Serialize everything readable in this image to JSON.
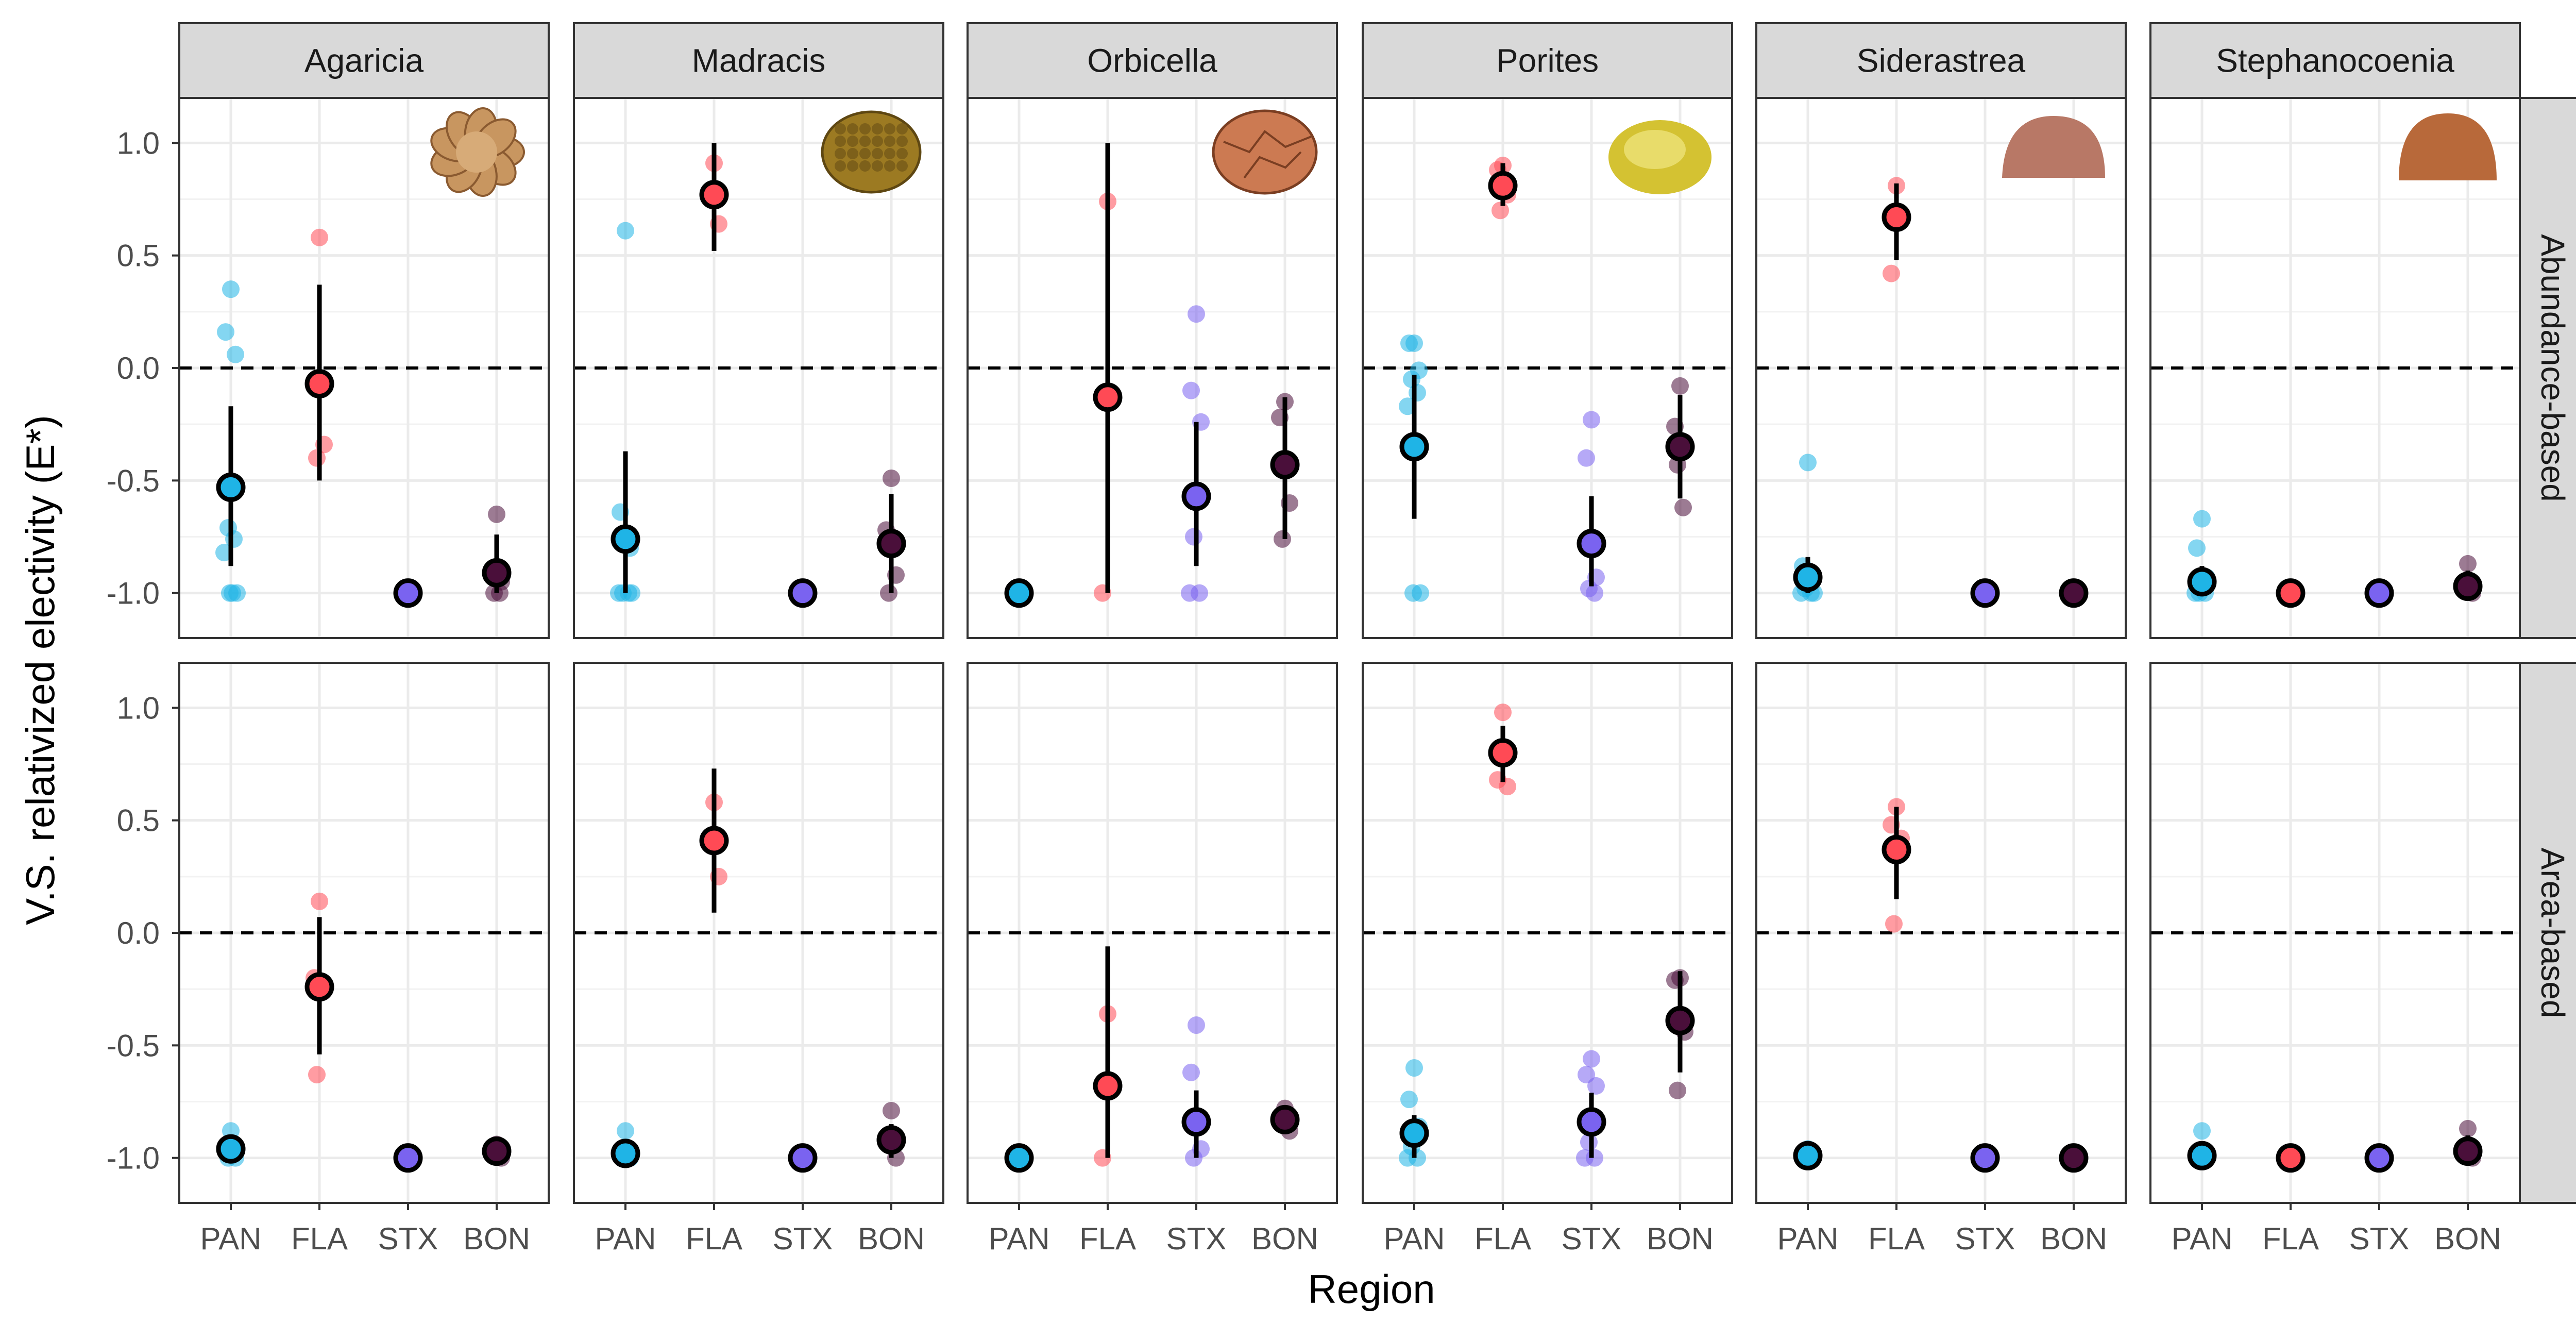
{
  "chart_data": {
    "type": "scatter",
    "xlabel": "Region",
    "ylabel": "V.S. relativized electivity (E*)",
    "ylim": [
      -1.2,
      1.2
    ],
    "yticks": [
      -1.0,
      -0.5,
      0.0,
      0.5,
      1.0
    ],
    "ytick_labels": [
      "-1.0",
      "-0.5",
      "0.0",
      "0.5",
      "1.0"
    ],
    "grid": true,
    "reference_line": {
      "y": 0,
      "style": "dashed"
    },
    "categories": [
      "PAN",
      "FLA",
      "STX",
      "BON"
    ],
    "category_colors": {
      "PAN": "#1fb4e6",
      "FLA": "#ff4a55",
      "STX": "#7a63f0",
      "BON": "#4a0f3a"
    },
    "genera": [
      "Agaricia",
      "Madracis",
      "Orbicella",
      "Porites",
      "Siderastrea",
      "Stephanocoenia"
    ],
    "rows": [
      "Abundance-based",
      "Area-based"
    ],
    "coral_icons": [
      {
        "genus": "Agaricia",
        "icon": "agaricia-coral-icon",
        "color": "#c89660"
      },
      {
        "genus": "Madracis",
        "icon": "madracis-coral-icon",
        "color": "#9c7a22"
      },
      {
        "genus": "Orbicella",
        "icon": "orbicella-coral-icon",
        "color": "#cc7a52"
      },
      {
        "genus": "Porites",
        "icon": "porites-coral-icon",
        "color": "#d4c232"
      },
      {
        "genus": "Siderastrea",
        "icon": "siderastrea-coral-icon",
        "color": "#b87866"
      },
      {
        "genus": "Stephanocoenia",
        "icon": "stephanocoenia-coral-icon",
        "color": "#b8693a"
      }
    ],
    "panels": [
      {
        "genus": "Agaricia",
        "row": "Abundance-based",
        "groups": [
          {
            "region": "PAN",
            "mean": -0.53,
            "lo": -0.88,
            "hi": -0.17,
            "points": [
              0.35,
              0.16,
              0.06,
              -0.71,
              -0.76,
              -0.82,
              -1.0,
              -1.0,
              -1.0
            ]
          },
          {
            "region": "FLA",
            "mean": -0.07,
            "lo": -0.5,
            "hi": 0.37,
            "points": [
              0.58,
              -0.07,
              -0.34,
              -0.4
            ]
          },
          {
            "region": "STX",
            "mean": -1.0,
            "lo": null,
            "hi": null,
            "points": [
              -1.0,
              -1.0,
              -1.0
            ]
          },
          {
            "region": "BON",
            "mean": -0.91,
            "lo": -1.0,
            "hi": -0.74,
            "points": [
              -0.65,
              -0.9,
              -0.95,
              -1.0,
              -1.0
            ]
          }
        ]
      },
      {
        "genus": "Madracis",
        "row": "Abundance-based",
        "groups": [
          {
            "region": "PAN",
            "mean": -0.76,
            "lo": -1.0,
            "hi": -0.37,
            "points": [
              0.61,
              -0.64,
              -0.8,
              -1.0,
              -1.0,
              -1.0,
              -1.0
            ]
          },
          {
            "region": "FLA",
            "mean": 0.77,
            "lo": 0.52,
            "hi": 1.0,
            "points": [
              0.91,
              0.78,
              0.64
            ]
          },
          {
            "region": "STX",
            "mean": -1.0,
            "lo": null,
            "hi": null,
            "points": [
              -1.0,
              -1.0
            ]
          },
          {
            "region": "BON",
            "mean": -0.78,
            "lo": -1.0,
            "hi": -0.56,
            "points": [
              -0.49,
              -0.72,
              -0.92,
              -1.0
            ]
          }
        ]
      },
      {
        "genus": "Orbicella",
        "row": "Abundance-based",
        "groups": [
          {
            "region": "PAN",
            "mean": -1.0,
            "lo": null,
            "hi": null,
            "points": [
              -1.0,
              -1.0,
              -1.0
            ]
          },
          {
            "region": "FLA",
            "mean": -0.13,
            "lo": -1.0,
            "hi": 1.0,
            "points": [
              0.74,
              -1.0
            ]
          },
          {
            "region": "STX",
            "mean": -0.57,
            "lo": -0.88,
            "hi": -0.24,
            "points": [
              0.24,
              -0.1,
              -0.24,
              -0.75,
              -1.0,
              -1.0
            ]
          },
          {
            "region": "BON",
            "mean": -0.43,
            "lo": -0.76,
            "hi": -0.13,
            "points": [
              -0.15,
              -0.22,
              -0.6,
              -0.76
            ]
          }
        ]
      },
      {
        "genus": "Porites",
        "row": "Abundance-based",
        "groups": [
          {
            "region": "PAN",
            "mean": -0.35,
            "lo": -0.67,
            "hi": -0.03,
            "points": [
              0.11,
              0.11,
              -0.01,
              -0.05,
              -0.11,
              -0.17,
              -1.0,
              -1.0
            ]
          },
          {
            "region": "FLA",
            "mean": 0.81,
            "lo": 0.72,
            "hi": 0.91,
            "points": [
              0.9,
              0.88,
              0.77,
              0.7
            ]
          },
          {
            "region": "STX",
            "mean": -0.78,
            "lo": -0.97,
            "hi": -0.57,
            "points": [
              -0.23,
              -0.4,
              -0.93,
              -0.98,
              -1.0
            ]
          },
          {
            "region": "BON",
            "mean": -0.35,
            "lo": -0.58,
            "hi": -0.12,
            "points": [
              -0.08,
              -0.26,
              -0.33,
              -0.43,
              -0.62
            ]
          }
        ]
      },
      {
        "genus": "Siderastrea",
        "row": "Abundance-based",
        "groups": [
          {
            "region": "PAN",
            "mean": -0.93,
            "lo": -1.0,
            "hi": -0.84,
            "points": [
              -0.42,
              -0.88,
              -0.94,
              -0.98,
              -1.0,
              -1.0,
              -1.0
            ]
          },
          {
            "region": "FLA",
            "mean": 0.67,
            "lo": 0.48,
            "hi": 0.82,
            "points": [
              0.81,
              0.42
            ]
          },
          {
            "region": "STX",
            "mean": -1.0,
            "lo": null,
            "hi": null,
            "points": [
              -1.0,
              -1.0
            ]
          },
          {
            "region": "BON",
            "mean": -1.0,
            "lo": null,
            "hi": null,
            "points": [
              -1.0,
              -1.0
            ]
          }
        ]
      },
      {
        "genus": "Stephanocoenia",
        "row": "Abundance-based",
        "groups": [
          {
            "region": "PAN",
            "mean": -0.95,
            "lo": -1.0,
            "hi": -0.88,
            "points": [
              -0.67,
              -0.8,
              -0.93,
              -1.0,
              -1.0,
              -1.0
            ]
          },
          {
            "region": "FLA",
            "mean": -1.0,
            "lo": null,
            "hi": null,
            "points": [
              -1.0,
              -1.0
            ]
          },
          {
            "region": "STX",
            "mean": -1.0,
            "lo": null,
            "hi": null,
            "points": [
              -1.0,
              -1.0
            ]
          },
          {
            "region": "BON",
            "mean": -0.97,
            "lo": -1.0,
            "hi": -0.9,
            "points": [
              -0.87,
              -0.96,
              -1.0
            ]
          }
        ]
      },
      {
        "genus": "Agaricia",
        "row": "Area-based",
        "groups": [
          {
            "region": "PAN",
            "mean": -0.96,
            "lo": -1.0,
            "hi": -0.91,
            "points": [
              -0.88,
              -0.95,
              -1.0,
              -1.0
            ]
          },
          {
            "region": "FLA",
            "mean": -0.24,
            "lo": -0.54,
            "hi": 0.07,
            "points": [
              0.14,
              -0.2,
              -0.25,
              -0.63
            ]
          },
          {
            "region": "STX",
            "mean": -1.0,
            "lo": null,
            "hi": null,
            "points": [
              -1.0,
              -1.0
            ]
          },
          {
            "region": "BON",
            "mean": -0.97,
            "lo": -1.0,
            "hi": -0.94,
            "points": [
              -0.94,
              -0.97,
              -1.0
            ]
          }
        ]
      },
      {
        "genus": "Madracis",
        "row": "Area-based",
        "groups": [
          {
            "region": "PAN",
            "mean": -0.98,
            "lo": -1.0,
            "hi": -0.94,
            "points": [
              -0.88,
              -0.98,
              -1.0
            ]
          },
          {
            "region": "FLA",
            "mean": 0.41,
            "lo": 0.09,
            "hi": 0.73,
            "points": [
              0.58,
              0.41,
              0.25
            ]
          },
          {
            "region": "STX",
            "mean": -1.0,
            "lo": null,
            "hi": null,
            "points": [
              -1.0,
              -1.0
            ]
          },
          {
            "region": "BON",
            "mean": -0.92,
            "lo": -1.0,
            "hi": -0.85,
            "points": [
              -0.79,
              -0.92,
              -1.0
            ]
          }
        ]
      },
      {
        "genus": "Orbicella",
        "row": "Area-based",
        "groups": [
          {
            "region": "PAN",
            "mean": -1.0,
            "lo": null,
            "hi": null,
            "points": [
              -1.0,
              -1.0
            ]
          },
          {
            "region": "FLA",
            "mean": -0.68,
            "lo": -1.0,
            "hi": -0.06,
            "points": [
              -0.36,
              -1.0
            ]
          },
          {
            "region": "STX",
            "mean": -0.84,
            "lo": -1.0,
            "hi": -0.7,
            "points": [
              -0.41,
              -0.62,
              -0.96,
              -1.0
            ]
          },
          {
            "region": "BON",
            "mean": -0.83,
            "lo": -0.87,
            "hi": -0.78,
            "points": [
              -0.78,
              -0.83,
              -0.88
            ]
          }
        ]
      },
      {
        "genus": "Porites",
        "row": "Area-based",
        "groups": [
          {
            "region": "PAN",
            "mean": -0.89,
            "lo": -1.0,
            "hi": -0.81,
            "points": [
              -0.6,
              -0.74,
              -0.86,
              -0.95,
              -1.0,
              -1.0
            ]
          },
          {
            "region": "FLA",
            "mean": 0.8,
            "lo": 0.67,
            "hi": 0.92,
            "points": [
              0.98,
              0.68,
              0.65
            ]
          },
          {
            "region": "STX",
            "mean": -0.84,
            "lo": -1.0,
            "hi": -0.71,
            "points": [
              -0.56,
              -0.63,
              -0.68,
              -0.93,
              -1.0,
              -1.0
            ]
          },
          {
            "region": "BON",
            "mean": -0.39,
            "lo": -0.62,
            "hi": -0.17,
            "points": [
              -0.2,
              -0.21,
              -0.44,
              -0.7
            ]
          }
        ]
      },
      {
        "genus": "Siderastrea",
        "row": "Area-based",
        "groups": [
          {
            "region": "PAN",
            "mean": -0.99,
            "lo": -1.0,
            "hi": -0.95,
            "points": [
              -0.96,
              -1.0,
              -1.0
            ]
          },
          {
            "region": "FLA",
            "mean": 0.37,
            "lo": 0.15,
            "hi": 0.56,
            "points": [
              0.56,
              0.48,
              0.42,
              0.04
            ]
          },
          {
            "region": "STX",
            "mean": -1.0,
            "lo": null,
            "hi": null,
            "points": [
              -1.0,
              -1.0
            ]
          },
          {
            "region": "BON",
            "mean": -1.0,
            "lo": null,
            "hi": null,
            "points": [
              -1.0,
              -1.0
            ]
          }
        ]
      },
      {
        "genus": "Stephanocoenia",
        "row": "Area-based",
        "groups": [
          {
            "region": "PAN",
            "mean": -0.99,
            "lo": -1.0,
            "hi": -0.95,
            "points": [
              -0.88,
              -0.98,
              -1.0
            ]
          },
          {
            "region": "FLA",
            "mean": -1.0,
            "lo": null,
            "hi": null,
            "points": [
              -1.0,
              -1.0
            ]
          },
          {
            "region": "STX",
            "mean": -1.0,
            "lo": null,
            "hi": null,
            "points": [
              -1.0,
              -1.0
            ]
          },
          {
            "region": "BON",
            "mean": -0.97,
            "lo": -1.0,
            "hi": -0.9,
            "points": [
              -0.87,
              -0.97,
              -1.0
            ]
          }
        ]
      }
    ]
  }
}
